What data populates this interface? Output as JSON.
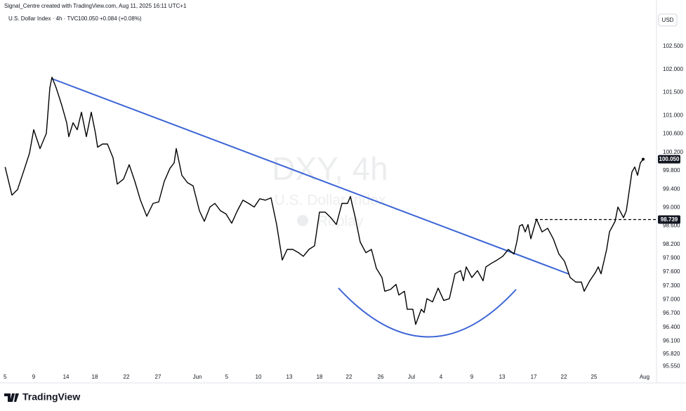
{
  "chart_data": {
    "type": "line",
    "credit": "Signal_Centre created with TradingView.com, Aug 11, 2025 16:11 UTC+1",
    "title": "U.S. Dollar Index · 4h · TVC",
    "last": "100.050",
    "change": "+0.084 (+0.08%)",
    "currency": "USD",
    "brand": "TradingView",
    "watermark": [
      "DXY, 4h",
      "U.S. Dollar Index",
      "Replay"
    ],
    "color": "#000000",
    "grid": false,
    "x": [
      0.0,
      1.07,
      1.95,
      3.04,
      3.81,
      4.47,
      5.46,
      6.45,
      7.0,
      7.33,
      7.99,
      8.87,
      9.63,
      9.96,
      10.62,
      11.28,
      11.94,
      12.71,
      13.48,
      14.14,
      14.47,
      15.24,
      16.01,
      16.88,
      17.54,
      18.53,
      19.41,
      20.29,
      21.17,
      22.16,
      23.15,
      24.02,
      24.9,
      25.78,
      26.44,
      26.77,
      27.65,
      28.53,
      29.41,
      30.39,
      31.16,
      32.04,
      32.81,
      33.69,
      34.57,
      35.45,
      36.33,
      37.2,
      38.08,
      38.96,
      39.84,
      40.72,
      41.6,
      42.48,
      43.36,
      44.12,
      45.0,
      45.88,
      46.65,
      47.53,
      48.41,
      49.18,
      50.06,
      50.94,
      51.81,
      52.69,
      53.57,
      54.01,
      54.78,
      55.55,
      56.43,
      57.31,
      58.07,
      58.95,
      59.39,
      60.27,
      61.15,
      61.59,
      62.47,
      62.91,
      63.79,
      64.23,
      65.1,
      65.54,
      65.98,
      66.86,
      67.74,
      68.62,
      69.5,
      70.38,
      71.26,
      71.69,
      72.13,
      73.01,
      73.89,
      74.77,
      75.21,
      76.09,
      76.97,
      77.85,
      78.72,
      79.6,
      80.04,
      80.48,
      80.92,
      81.36,
      81.8,
      82.24,
      83.12,
      84.0,
      84.88,
      85.75,
      86.63,
      87.51,
      88.39,
      89.27,
      90.15,
      90.59,
      91.47,
      92.34,
      92.78,
      93.22,
      94.1,
      94.54,
      95.42,
      95.86,
      96.74,
      97.18,
      98.06,
      98.49,
      98.93,
      99.37,
      99.81
    ],
    "values": [
      99.88,
      99.27,
      99.39,
      99.85,
      100.18,
      100.69,
      100.28,
      100.61,
      101.6,
      101.83,
      101.6,
      101.22,
      100.84,
      100.54,
      100.84,
      100.69,
      101.07,
      100.54,
      101.07,
      100.61,
      100.31,
      100.38,
      100.38,
      100.08,
      99.51,
      99.62,
      99.93,
      99.57,
      99.16,
      98.81,
      99.09,
      99.12,
      99.57,
      99.85,
      99.97,
      100.28,
      99.7,
      99.54,
      99.47,
      98.93,
      98.7,
      99.01,
      99.09,
      98.93,
      98.86,
      98.66,
      98.93,
      99.16,
      99.09,
      99.01,
      99.19,
      99.16,
      99.21,
      98.63,
      97.86,
      98.09,
      98.09,
      98.02,
      97.94,
      98.09,
      98.17,
      98.9,
      98.9,
      98.78,
      98.63,
      99.09,
      99.09,
      99.24,
      98.78,
      98.25,
      98.02,
      98.09,
      97.68,
      97.48,
      97.18,
      97.22,
      97.33,
      97.1,
      97.18,
      96.79,
      96.79,
      96.46,
      96.79,
      96.72,
      97.02,
      96.95,
      97.25,
      96.98,
      97.02,
      97.56,
      97.63,
      97.41,
      97.71,
      97.48,
      97.63,
      97.41,
      97.71,
      97.79,
      97.86,
      97.94,
      98.09,
      97.99,
      98.25,
      98.6,
      98.63,
      98.47,
      98.63,
      98.32,
      98.75,
      98.47,
      98.55,
      98.32,
      97.99,
      97.83,
      97.48,
      97.38,
      97.38,
      97.18,
      97.41,
      97.59,
      97.71,
      97.56,
      98.09,
      98.47,
      98.7,
      99.01,
      98.78,
      98.93,
      99.77,
      99.88,
      99.7,
      99.97,
      100.05
    ],
    "xlim": [
      -0.8,
      101.9
    ],
    "ylim": [
      95.45,
      103.05
    ],
    "xticks": [
      {
        "value": 0,
        "label": "5"
      },
      {
        "value": 4.47,
        "label": "9"
      },
      {
        "value": 9.53,
        "label": "14"
      },
      {
        "value": 14.03,
        "label": "18"
      },
      {
        "value": 18.97,
        "label": "22"
      },
      {
        "value": 23.91,
        "label": "27"
      },
      {
        "value": 30.07,
        "label": "Jun"
      },
      {
        "value": 34.68,
        "label": "5"
      },
      {
        "value": 39.62,
        "label": "10"
      },
      {
        "value": 44.45,
        "label": "13"
      },
      {
        "value": 49.18,
        "label": "18"
      },
      {
        "value": 53.79,
        "label": "22"
      },
      {
        "value": 58.73,
        "label": "26"
      },
      {
        "value": 63.57,
        "label": "Jul"
      },
      {
        "value": 68.18,
        "label": "4"
      },
      {
        "value": 73.01,
        "label": "9"
      },
      {
        "value": 77.74,
        "label": "13"
      },
      {
        "value": 82.68,
        "label": "17"
      },
      {
        "value": 87.4,
        "label": "22"
      },
      {
        "value": 92.12,
        "label": "25"
      },
      {
        "value": 100.03,
        "label": "Aug"
      }
    ],
    "yticks": [
      {
        "value": 102.5,
        "label": "102.500"
      },
      {
        "value": 102,
        "label": "102.000"
      },
      {
        "value": 101.5,
        "label": "101.500"
      },
      {
        "value": 101,
        "label": "101.000"
      },
      {
        "value": 100.6,
        "label": "100.600"
      },
      {
        "value": 100.2,
        "label": "100.200"
      },
      {
        "value": 99.8,
        "label": "99.800"
      },
      {
        "value": 99.4,
        "label": "99.400"
      },
      {
        "value": 99,
        "label": "99.000"
      },
      {
        "value": 98.6,
        "label": "98.600"
      },
      {
        "value": 98.2,
        "label": "98.200"
      },
      {
        "value": 97.9,
        "label": "97.900"
      },
      {
        "value": 97.6,
        "label": "97.600"
      },
      {
        "value": 97.3,
        "label": "97.300"
      },
      {
        "value": 97,
        "label": "97.000"
      },
      {
        "value": 96.7,
        "label": "96.700"
      },
      {
        "value": 96.4,
        "label": "96.400"
      },
      {
        "value": 96.1,
        "label": "96.100"
      },
      {
        "value": 95.82,
        "label": "95.820"
      },
      {
        "value": 95.55,
        "label": "95.550"
      }
    ],
    "price_lines": [
      {
        "value": 100.05,
        "label": "100.050",
        "dashed": false
      },
      {
        "value": 98.739,
        "dashed": true
      }
    ]
  }
}
